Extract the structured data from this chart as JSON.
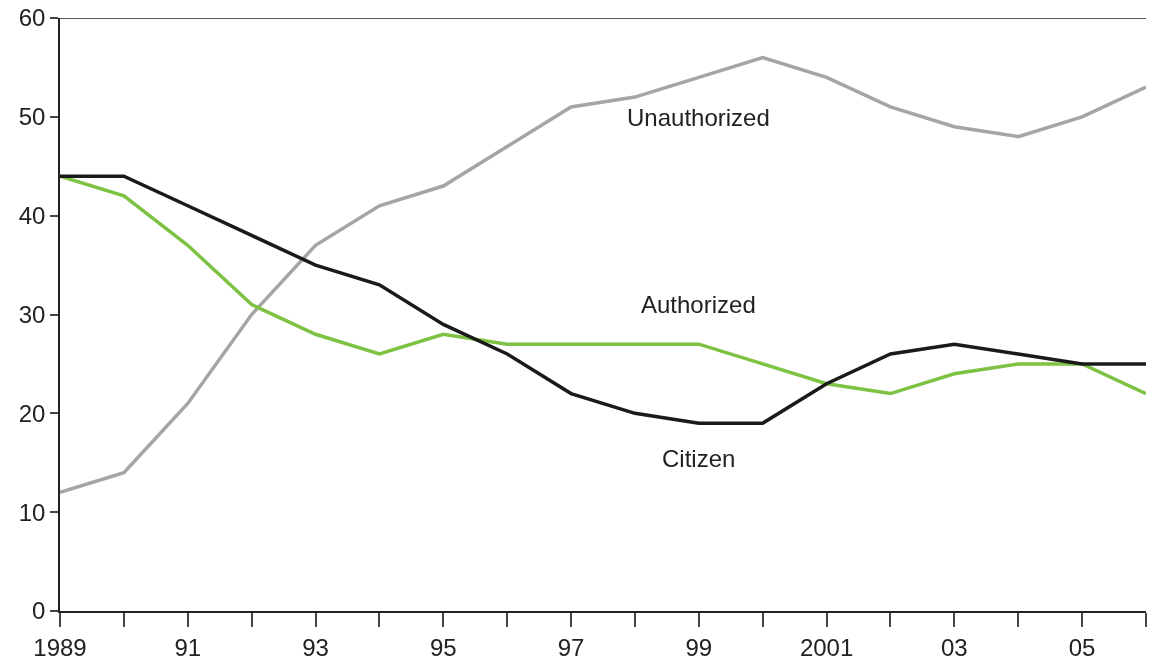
{
  "chart_data": {
    "type": "line",
    "x": [
      1989,
      1990,
      1991,
      1992,
      1993,
      1994,
      1995,
      1996,
      1997,
      1998,
      1999,
      2000,
      2001,
      2002,
      2003,
      2004,
      2005,
      2006
    ],
    "series": [
      {
        "name": "Unauthorized",
        "color": "#a5a5a5",
        "values": [
          12,
          14,
          21,
          30,
          37,
          41,
          43,
          47,
          51,
          52,
          54,
          56,
          54,
          51,
          49,
          48,
          50,
          53
        ]
      },
      {
        "name": "Authorized",
        "color": "#7dc242",
        "values": [
          44,
          42,
          37,
          31,
          28,
          26,
          28,
          27,
          27,
          27,
          27,
          25,
          23,
          22,
          24,
          25,
          25,
          22
        ]
      },
      {
        "name": "Citizen",
        "color": "#1a1a1a",
        "values": [
          44,
          44,
          41,
          38,
          35,
          33,
          29,
          26,
          22,
          20,
          19,
          19,
          23,
          26,
          27,
          26,
          25,
          25
        ]
      }
    ],
    "xlim": [
      1989,
      2006
    ],
    "ylim": [
      0,
      60
    ],
    "xticks": [
      {
        "value": 1989,
        "label": "1989"
      },
      {
        "value": 1990,
        "label": null
      },
      {
        "value": 1991,
        "label": "91"
      },
      {
        "value": 1992,
        "label": null
      },
      {
        "value": 1993,
        "label": "93"
      },
      {
        "value": 1994,
        "label": null
      },
      {
        "value": 1995,
        "label": "95"
      },
      {
        "value": 1996,
        "label": null
      },
      {
        "value": 1997,
        "label": "97"
      },
      {
        "value": 1998,
        "label": null
      },
      {
        "value": 1999,
        "label": "99"
      },
      {
        "value": 2000,
        "label": null
      },
      {
        "value": 2001,
        "label": "2001"
      },
      {
        "value": 2002,
        "label": null
      },
      {
        "value": 2003,
        "label": "03"
      },
      {
        "value": 2004,
        "label": null
      },
      {
        "value": 2005,
        "label": "05"
      },
      {
        "value": 2006,
        "label": null
      }
    ],
    "yticks": [
      0,
      10,
      20,
      30,
      40,
      50,
      60
    ],
    "legend": false,
    "marker": "none",
    "line_style": "solid"
  }
}
